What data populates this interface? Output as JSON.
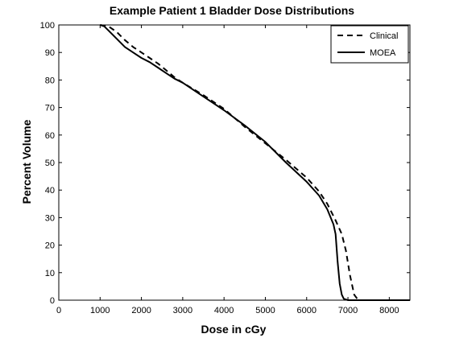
{
  "chart_data": {
    "type": "line",
    "title": "Example Patient 1 Bladder Dose Distributions",
    "xlabel": "Dose in cGy",
    "ylabel": "Percent Volume",
    "xlim": [
      0,
      8500
    ],
    "ylim": [
      0,
      100
    ],
    "xticks": [
      0,
      1000,
      2000,
      3000,
      4000,
      5000,
      6000,
      7000,
      8000
    ],
    "yticks": [
      0,
      10,
      20,
      30,
      40,
      50,
      60,
      70,
      80,
      90,
      100
    ],
    "grid": false,
    "legend_position": "top-right",
    "series": [
      {
        "name": "Clinical",
        "style": "dashed",
        "color": "#000000",
        "x": [
          1000,
          1200,
          1400,
          1600,
          1800,
          2000,
          2200,
          2400,
          2600,
          2800,
          3000,
          3500,
          4000,
          4500,
          5000,
          5500,
          6000,
          6300,
          6500,
          6700,
          6850,
          6950,
          7050,
          7150,
          7250,
          8500
        ],
        "y": [
          100,
          99.5,
          97.5,
          94.5,
          92,
          90,
          88,
          86,
          83.5,
          81,
          79,
          74.5,
          69.5,
          63,
          57,
          51,
          44.5,
          39.5,
          35,
          29,
          24,
          18,
          9,
          2,
          0,
          0
        ]
      },
      {
        "name": "MOEA",
        "style": "solid",
        "color": "#000000",
        "x": [
          1000,
          1100,
          1200,
          1400,
          1600,
          1800,
          2000,
          2200,
          2400,
          2600,
          2800,
          3000,
          3500,
          4000,
          4500,
          5000,
          5500,
          6000,
          6300,
          6500,
          6650,
          6700,
          6750,
          6800,
          6850,
          6900,
          7000,
          8500
        ],
        "y": [
          100,
          99.5,
          98,
          95,
          92,
          90,
          88,
          86.5,
          84.5,
          82.5,
          80.5,
          79,
          74,
          69,
          63.5,
          57.5,
          50,
          43,
          38,
          33,
          27.5,
          24,
          14,
          6,
          2,
          0.5,
          0,
          0
        ]
      }
    ]
  }
}
